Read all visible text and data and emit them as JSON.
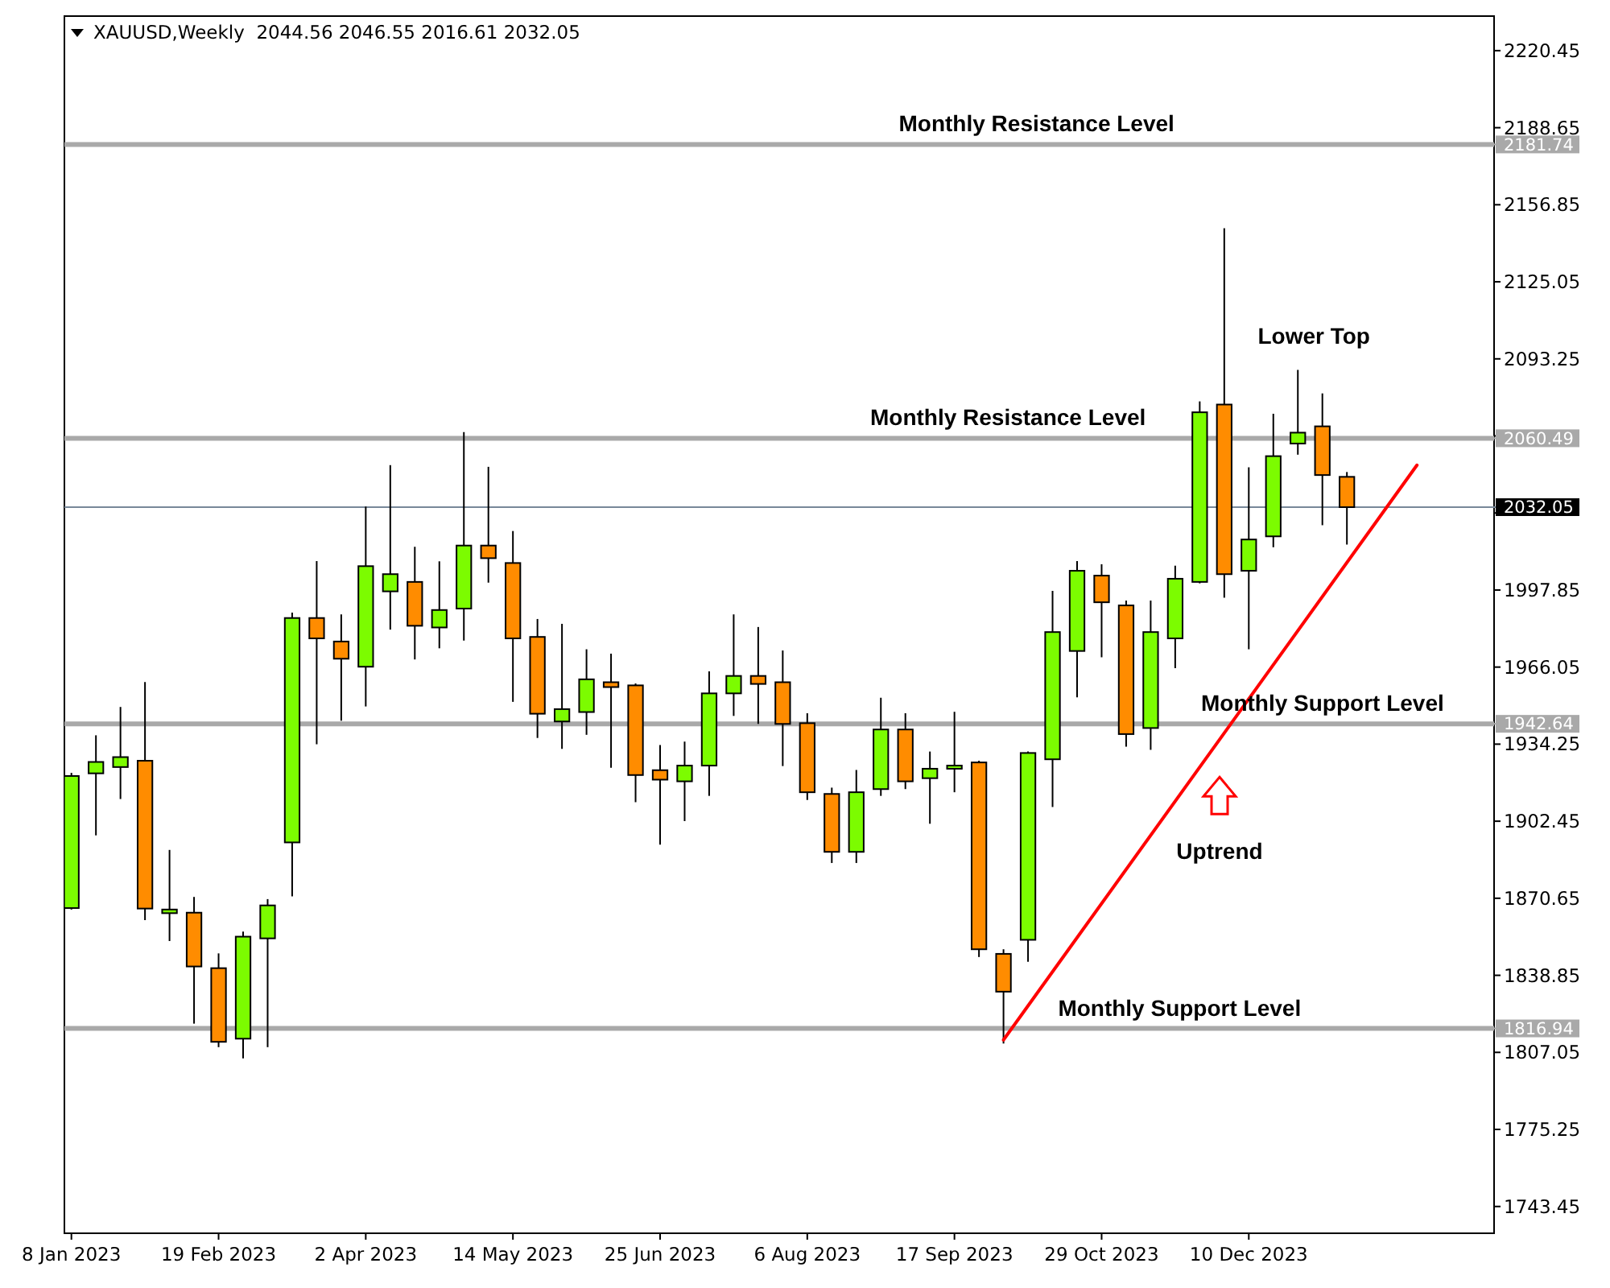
{
  "chart_data": {
    "type": "candlestick",
    "title": "XAUUSD,Weekly  2044.56 2046.55 2016.61 2032.05",
    "xlim": [
      "2023-01-06",
      "2024-02-18"
    ],
    "xticks": [
      {
        "value": "2023-01-08",
        "label": "8 Jan 2023"
      },
      {
        "value": "2023-02-19",
        "label": "19 Feb 2023"
      },
      {
        "value": "2023-04-02",
        "label": "2 Apr 2023"
      },
      {
        "value": "2023-05-14",
        "label": "14 May 2023"
      },
      {
        "value": "2023-06-25",
        "label": "25 Jun 2023"
      },
      {
        "value": "2023-08-06",
        "label": "6 Aug 2023"
      },
      {
        "value": "2023-09-17",
        "label": "17 Sep 2023"
      },
      {
        "value": "2023-10-29",
        "label": "29 Oct 2023"
      },
      {
        "value": "2023-12-10",
        "label": "10 Dec 2023"
      }
    ],
    "ylim": [
      1732.4,
      2234.7
    ],
    "yticks": [
      2220.45,
      2188.65,
      2181.74,
      2156.85,
      2125.05,
      2093.25,
      {
        "value": 2061.45,
        "label": null
      },
      2060.49,
      2032.05,
      {
        "value": 2029.65,
        "label": null
      },
      1997.85,
      1966.05,
      1942.64,
      1934.25,
      1902.45,
      1870.65,
      1838.85,
      1816.94,
      1807.05,
      1775.25,
      1743.45
    ],
    "ref_lines": [
      {
        "axis": "y",
        "value": 2181.74,
        "label": "Monthly Resistance Level",
        "color": "#a9a9a9"
      },
      {
        "axis": "y",
        "value": 2060.49,
        "label": "Monthly Resistance Level",
        "color": "#a9a9a9"
      },
      {
        "axis": "y",
        "value": 1942.64,
        "label": "Monthly Support Level",
        "color": "#a9a9a9"
      },
      {
        "axis": "y",
        "value": 1816.94,
        "label": "Monthly Support Level",
        "color": "#a9a9a9"
      },
      {
        "axis": "y",
        "value": 2032.05,
        "label": null,
        "color": "#778899"
      }
    ],
    "annotations": [
      "Lower Top",
      "Uptrend"
    ],
    "series": [
      {
        "x": [
          "2023-01-08",
          "2023-01-15",
          "2023-01-22",
          "2023-01-29",
          "2023-02-05",
          "2023-02-12",
          "2023-02-19",
          "2023-02-26",
          "2023-03-05",
          "2023-03-12",
          "2023-03-19",
          "2023-03-26",
          "2023-04-02",
          "2023-04-09",
          "2023-04-16",
          "2023-04-23",
          "2023-04-30",
          "2023-05-07",
          "2023-05-14",
          "2023-05-21",
          "2023-05-28",
          "2023-06-04",
          "2023-06-11",
          "2023-06-18",
          "2023-06-25",
          "2023-07-02",
          "2023-07-09",
          "2023-07-16",
          "2023-07-23",
          "2023-07-30",
          "2023-08-06",
          "2023-08-13",
          "2023-08-20",
          "2023-08-27",
          "2023-09-03",
          "2023-09-10",
          "2023-09-17",
          "2023-09-24",
          "2023-10-01",
          "2023-10-08",
          "2023-10-15",
          "2023-10-22",
          "2023-10-29",
          "2023-11-05",
          "2023-11-12",
          "2023-11-19",
          "2023-11-26",
          "2023-12-03",
          "2023-12-10",
          "2023-12-17",
          "2023-12-24",
          "2023-12-31",
          "2024-01-07"
        ],
        "ohlc": [
          [
            1866.6,
            1922.4,
            1866.0,
            1921.1
          ],
          [
            1922.2,
            1937.9,
            1896.6,
            1926.9
          ],
          [
            1924.8,
            1949.6,
            1911.6,
            1928.9
          ],
          [
            1927.4,
            1959.9,
            1861.6,
            1866.4
          ],
          [
            1864.5,
            1890.6,
            1853.0,
            1866.0
          ],
          [
            1864.7,
            1871.2,
            1818.9,
            1842.5
          ],
          [
            1841.8,
            1847.9,
            1809.2,
            1811.4
          ],
          [
            1812.7,
            1856.9,
            1804.6,
            1854.8
          ],
          [
            1854.1,
            1870.3,
            1809.2,
            1867.7
          ],
          [
            1893.7,
            1988.5,
            1871.4,
            1986.3
          ],
          [
            1986.3,
            2009.8,
            1934.2,
            1977.9
          ],
          [
            1976.6,
            1987.8,
            1943.9,
            1969.5
          ],
          [
            1966.2,
            2032.3,
            1949.8,
            2007.7
          ],
          [
            1997.3,
            2049.4,
            1981.5,
            2004.4
          ],
          [
            2001.2,
            2015.7,
            1969.2,
            1983.1
          ],
          [
            1982.4,
            2009.7,
            1973.8,
            1989.6
          ],
          [
            1990.2,
            2063.0,
            1977.0,
            2016.2
          ],
          [
            2016.2,
            2048.7,
            2000.9,
            2011.0
          ],
          [
            2009.0,
            2022.2,
            1951.7,
            1977.9
          ],
          [
            1978.5,
            1985.9,
            1936.8,
            1946.8
          ],
          [
            1943.6,
            1983.9,
            1932.3,
            1948.7
          ],
          [
            1947.5,
            1973.4,
            1938.1,
            1961.0
          ],
          [
            1959.8,
            1971.6,
            1924.5,
            1957.8
          ],
          [
            1958.5,
            1959.3,
            1910.3,
            1921.5
          ],
          [
            1923.5,
            1933.9,
            1892.8,
            1919.6
          ],
          [
            1918.9,
            1935.3,
            1902.5,
            1925.4
          ],
          [
            1925.4,
            1964.3,
            1912.9,
            1955.2
          ],
          [
            1955.2,
            1987.8,
            1945.9,
            1962.4
          ],
          [
            1962.4,
            1982.6,
            1942.6,
            1959.1
          ],
          [
            1959.8,
            1972.9,
            1925.2,
            1942.6
          ],
          [
            1942.9,
            1947.0,
            1911.2,
            1914.4
          ],
          [
            1913.7,
            1916.3,
            1885.2,
            1889.8
          ],
          [
            1889.8,
            1923.6,
            1885.2,
            1914.4
          ],
          [
            1915.7,
            1953.4,
            1912.9,
            1940.3
          ],
          [
            1940.3,
            1947.0,
            1915.7,
            1918.9
          ],
          [
            1920.2,
            1931.2,
            1901.4,
            1924.1
          ],
          [
            1924.1,
            1947.6,
            1914.4,
            1925.4
          ],
          [
            1926.7,
            1927.4,
            1846.4,
            1849.6
          ],
          [
            1847.7,
            1849.6,
            1810.7,
            1832.1
          ],
          [
            1853.5,
            1931.2,
            1844.4,
            1930.6
          ],
          [
            1928.0,
            1997.5,
            1908.3,
            1980.5
          ],
          [
            1972.7,
            2009.8,
            1953.6,
            2005.8
          ],
          [
            2003.8,
            2008.5,
            1970.1,
            1992.8
          ],
          [
            1991.5,
            1993.5,
            1933.2,
            1938.4
          ],
          [
            1940.9,
            1993.5,
            1931.9,
            1980.5
          ],
          [
            1977.9,
            2007.9,
            1965.6,
            2002.5
          ],
          [
            2001.2,
            2075.7,
            2000.6,
            2071.2
          ],
          [
            2074.4,
            2147.2,
            1994.7,
            2004.4
          ],
          [
            2005.8,
            2048.5,
            1973.4,
            2018.7
          ],
          [
            2020.0,
            2070.6,
            2015.5,
            2053.1
          ],
          [
            2058.3,
            2088.7,
            2053.7,
            2062.8
          ],
          [
            2065.4,
            2079.0,
            2024.6,
            2045.3
          ],
          [
            2044.56,
            2046.55,
            2016.61,
            2032.05
          ]
        ],
        "colors": [
          "#7cfc00",
          "#7cfc00",
          "#7cfc00",
          "#ff8c00",
          "#7cfc00",
          "#ff8c00",
          "#ff8c00",
          "#7cfc00",
          "#7cfc00",
          "#7cfc00",
          "#ff8c00",
          "#ff8c00",
          "#7cfc00",
          "#7cfc00",
          "#ff8c00",
          "#7cfc00",
          "#7cfc00",
          "#ff8c00",
          "#ff8c00",
          "#ff8c00",
          "#7cfc00",
          "#7cfc00",
          "#ff8c00",
          "#ff8c00",
          "#ff8c00",
          "#7cfc00",
          "#7cfc00",
          "#7cfc00",
          "#ff8c00",
          "#ff8c00",
          "#ff8c00",
          "#ff8c00",
          "#7cfc00",
          "#7cfc00",
          "#ff8c00",
          "#7cfc00",
          "#7cfc00",
          "#ff8c00",
          "#ff8c00",
          "#7cfc00",
          "#7cfc00",
          "#7cfc00",
          "#ff8c00",
          "#ff8c00",
          "#7cfc00",
          "#7cfc00",
          "#7cfc00",
          "#ff8c00",
          "#7cfc00",
          "#7cfc00",
          "#7cfc00",
          "#ff8c00",
          "#ff8c00"
        ]
      },
      {
        "type": "line",
        "x": [
          "2023-10-01",
          "2024-01-27"
        ],
        "values": [
          1812.2,
          2049.4
        ],
        "color": "#ff0000"
      }
    ]
  }
}
